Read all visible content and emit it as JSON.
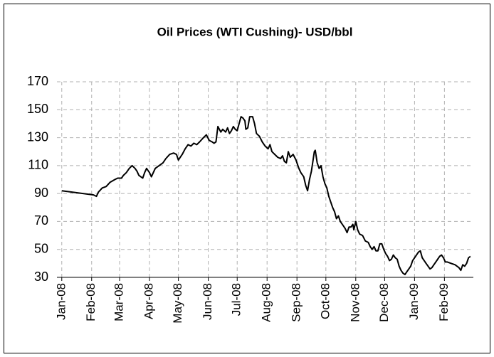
{
  "chart_data": {
    "type": "line",
    "title": "Oil Prices (WTI Cushing)- USD/bbl",
    "color": "#000000",
    "grid": true,
    "x": [
      0,
      33,
      36,
      38,
      42,
      46,
      50,
      55,
      58,
      62,
      64,
      67,
      70,
      73,
      76,
      78,
      80,
      84,
      86,
      88,
      91,
      93,
      97,
      101,
      105,
      108,
      112,
      116,
      119,
      121,
      125,
      128,
      131,
      134,
      137,
      140,
      143,
      147,
      150,
      153,
      156,
      158,
      160,
      162,
      165,
      167,
      170,
      172,
      174,
      176,
      178,
      180,
      182,
      184,
      186,
      188,
      190,
      191,
      193,
      195,
      198,
      200,
      202,
      205,
      208,
      211,
      214,
      216,
      218,
      221,
      224,
      227,
      229,
      231,
      233,
      235,
      237,
      240,
      243,
      246,
      248,
      251,
      253,
      255,
      257,
      259,
      262,
      263,
      265,
      267,
      269,
      271,
      273,
      275,
      277,
      279,
      281,
      283,
      285,
      287,
      289,
      292,
      294,
      296,
      298,
      300,
      302,
      303,
      305,
      307,
      309,
      312,
      315,
      318,
      320,
      322,
      324,
      326,
      328,
      330,
      332,
      334,
      336,
      338,
      340,
      342,
      344,
      346,
      348,
      350,
      352,
      354,
      356,
      358,
      360,
      362,
      364,
      366,
      368,
      370,
      372,
      374,
      376,
      378,
      380,
      382,
      384,
      386,
      388,
      390,
      392,
      394,
      396,
      398,
      400,
      404,
      408,
      410,
      412,
      414,
      416,
      418,
      420,
      422,
      424
    ],
    "values": [
      92,
      89,
      88,
      91,
      94,
      95,
      98,
      100,
      101,
      101,
      103,
      105,
      108,
      110,
      108,
      106,
      103,
      101,
      105,
      108,
      105,
      102,
      108,
      110,
      112,
      115,
      118,
      119,
      118,
      114,
      118,
      122,
      125,
      124,
      126,
      125,
      127,
      130,
      132,
      128,
      127,
      126,
      127,
      138,
      134,
      136,
      134,
      137,
      133,
      135,
      138,
      136,
      135,
      140,
      145,
      144,
      142,
      136,
      137,
      145,
      145,
      140,
      133,
      131,
      127,
      124,
      122,
      125,
      120,
      118,
      116,
      115,
      117,
      113,
      112,
      120,
      116,
      118,
      114,
      108,
      105,
      102,
      96,
      92,
      100,
      106,
      120,
      121,
      112,
      108,
      110,
      102,
      97,
      94,
      88,
      84,
      80,
      77,
      72,
      74,
      70,
      67,
      65,
      62,
      66,
      66,
      68,
      64,
      70,
      64,
      61,
      60,
      56,
      55,
      52,
      50,
      52,
      49,
      49,
      54,
      54,
      50,
      47,
      45,
      42,
      43,
      46,
      44,
      43,
      38,
      35,
      33,
      32,
      34,
      36,
      38,
      42,
      44,
      46,
      48,
      49,
      44,
      42,
      40,
      38,
      36,
      37,
      39,
      41,
      43,
      45,
      46,
      44,
      41,
      41,
      40,
      39,
      38,
      37,
      35,
      39,
      38,
      40,
      44,
      45
    ],
    "xlim": [
      -5,
      427
    ],
    "xticks": [
      {
        "value": 0,
        "label": "Jan-08"
      },
      {
        "value": 31,
        "label": "Feb-08"
      },
      {
        "value": 60,
        "label": "Mar-08"
      },
      {
        "value": 91,
        "label": "Apr-08"
      },
      {
        "value": 121,
        "label": "May-08"
      },
      {
        "value": 152,
        "label": "Jun-08"
      },
      {
        "value": 182,
        "label": "Jul-08"
      },
      {
        "value": 213,
        "label": "Aug-08"
      },
      {
        "value": 244,
        "label": "Sep-08"
      },
      {
        "value": 274,
        "label": "Oct-08"
      },
      {
        "value": 305,
        "label": "Nov-08"
      },
      {
        "value": 335,
        "label": "Dec-08"
      },
      {
        "value": 366,
        "label": "Jan-09"
      },
      {
        "value": 397,
        "label": "Feb-09"
      }
    ],
    "ylim": [
      30,
      170
    ],
    "yticks": [
      30,
      50,
      70,
      90,
      110,
      130,
      150,
      170
    ]
  }
}
